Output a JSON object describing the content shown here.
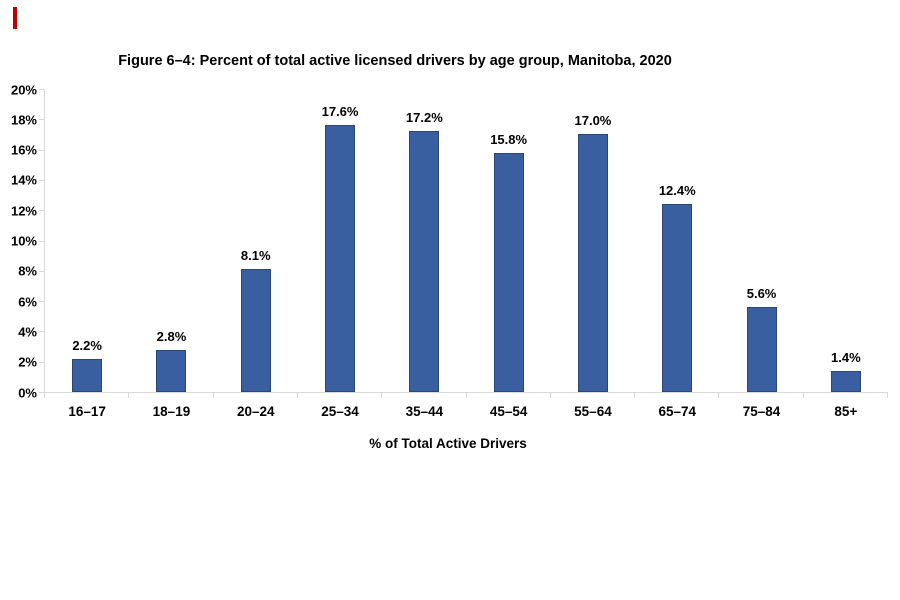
{
  "page": {
    "background": "#ffffff"
  },
  "decoration": {
    "red_mark_color": "#c00000"
  },
  "chart_data": {
    "type": "bar",
    "title": "Figure 6–4: Percent of total active licensed drivers by age group, Manitoba, 2020",
    "xlabel": "% of Total Active Drivers",
    "ylabel": "",
    "categories": [
      "16–17",
      "18–19",
      "20–24",
      "25–34",
      "35–44",
      "45–54",
      "55–64",
      "65–74",
      "75–84",
      "85+"
    ],
    "values": [
      2.2,
      2.8,
      8.1,
      17.6,
      17.2,
      15.8,
      17.0,
      12.4,
      5.6,
      1.4
    ],
    "value_labels": [
      "2.2%",
      "2.8%",
      "8.1%",
      "17.6%",
      "17.2%",
      "15.8%",
      "17.0%",
      "12.4%",
      "5.6%",
      "1.4%"
    ],
    "ylim": [
      0,
      20
    ],
    "y_ticks": [
      0,
      2,
      4,
      6,
      8,
      10,
      12,
      14,
      16,
      18,
      20
    ],
    "y_tick_labels": [
      "0%",
      "2%",
      "4%",
      "6%",
      "8%",
      "10%",
      "12%",
      "14%",
      "16%",
      "18%",
      "20%"
    ],
    "grid": "off",
    "legend": "none",
    "bar_color": "#3a5fa0",
    "bar_border_color": "#2b4875",
    "axis_color": "#d9d9d9",
    "text_color": "#000000"
  }
}
